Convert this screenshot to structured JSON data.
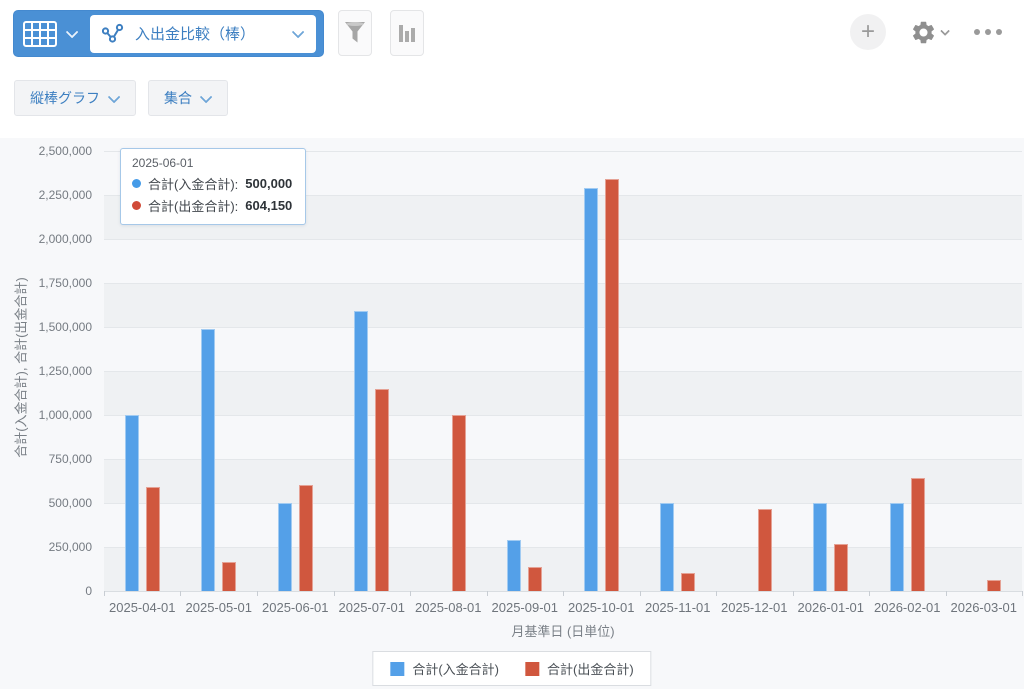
{
  "toolbar": {
    "chart_selector_label": "入出金比較（棒）",
    "plus_glyph": "+"
  },
  "controls": {
    "chart_type_label": "縦棒グラフ",
    "aggregation_label": "集合"
  },
  "tooltip": {
    "title": "2025-06-01",
    "rows": [
      {
        "label": "合計(入金合計):",
        "value": "500,000",
        "color": "#459BE8"
      },
      {
        "label": "合計(出金合計):",
        "value": "604,150",
        "color": "#D14B38"
      }
    ]
  },
  "chart_data": {
    "type": "bar",
    "title": "入出金比較（棒）",
    "categories": [
      "2025-04-01",
      "2025-05-01",
      "2025-06-01",
      "2025-07-01",
      "2025-08-01",
      "2025-09-01",
      "2025-10-01",
      "2025-11-01",
      "2025-12-01",
      "2026-01-01",
      "2026-02-01",
      "2026-03-01"
    ],
    "series": [
      {
        "name": "合計(入金合計)",
        "color": "#54A0E8",
        "values": [
          1000000,
          1490000,
          500000,
          1590000,
          0,
          290000,
          2290000,
          500000,
          0,
          500000,
          500000,
          0
        ]
      },
      {
        "name": "合計(出金合計)",
        "color": "#D0573E",
        "values": [
          590000,
          165000,
          604150,
          1150000,
          1000000,
          135000,
          2340000,
          105000,
          465000,
          265000,
          640000,
          65000
        ]
      }
    ],
    "xlabel": "月基準日 (日単位)",
    "ylabel": "合計(入金合計), 合計(出金合計)",
    "ylim": [
      0,
      2500000
    ],
    "ytick_interval": 250000,
    "grid": true,
    "legend_position": "bottom",
    "band_colors": [
      "#F7F8FA",
      "#EFF1F3"
    ]
  }
}
